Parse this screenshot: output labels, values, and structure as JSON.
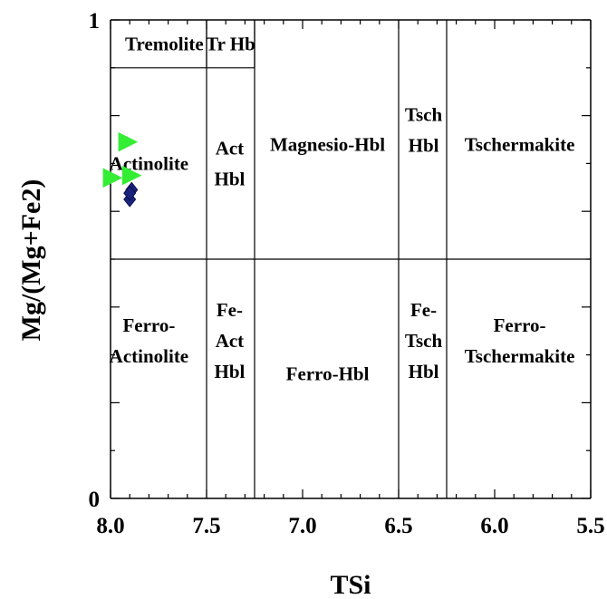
{
  "chart_data": {
    "type": "scatter",
    "title": "",
    "xlabel": "TSi",
    "ylabel": "Mg/(Mg+Fe2)",
    "xlim": [
      8.0,
      5.5
    ],
    "ylim": [
      0,
      1
    ],
    "x_reversed": true,
    "grid": false,
    "x_ticks": [
      8.0,
      7.5,
      7.0,
      6.5,
      6.0,
      5.5
    ],
    "x_tick_labels": [
      "8.0",
      "7.5",
      "7.0",
      "6.5",
      "6.0",
      "5.5"
    ],
    "y_ticks": [
      0,
      1
    ],
    "y_tick_labels": [
      "0",
      "1"
    ],
    "boundaries": {
      "vertical": [
        7.5,
        7.25,
        6.5,
        6.25
      ],
      "horizontal": [
        0.5
      ],
      "top_box": {
        "x_from": 8.0,
        "x_to": 7.25,
        "y_from": 0.9,
        "y_to": 1.0,
        "divider_x": 7.5
      }
    },
    "regions": [
      {
        "lines": [
          "Tremolite"
        ],
        "x": 7.72,
        "y": 0.95
      },
      {
        "lines": [
          "Tr Hb"
        ],
        "x": 7.375,
        "y": 0.95
      },
      {
        "lines": [
          "Actinolite"
        ],
        "x": 7.8,
        "y": 0.7
      },
      {
        "lines": [
          "Act",
          "Hbl"
        ],
        "x": 7.38,
        "y": 0.7
      },
      {
        "lines": [
          "Magnesio-Hbl"
        ],
        "x": 6.87,
        "y": 0.74
      },
      {
        "lines": [
          "Tsch",
          "Hbl"
        ],
        "x": 6.37,
        "y": 0.77
      },
      {
        "lines": [
          "Tschermakite"
        ],
        "x": 5.87,
        "y": 0.74
      },
      {
        "lines": [
          "Ferro-",
          "Actinolite"
        ],
        "x": 7.8,
        "y": 0.33
      },
      {
        "lines": [
          "Fe-",
          "Act",
          "Hbl"
        ],
        "x": 7.38,
        "y": 0.33
      },
      {
        "lines": [
          "Ferro-Hbl"
        ],
        "x": 6.87,
        "y": 0.26
      },
      {
        "lines": [
          "Fe-",
          "Tsch",
          "Hbl"
        ],
        "x": 6.37,
        "y": 0.33
      },
      {
        "lines": [
          "Ferro-",
          "Tschermakite"
        ],
        "x": 5.87,
        "y": 0.33
      }
    ],
    "series": [
      {
        "marker": "triangle-right",
        "color": "#33ee33",
        "points": [
          {
            "x": 7.91,
            "y": 0.745
          },
          {
            "x": 7.99,
            "y": 0.67
          },
          {
            "x": 7.89,
            "y": 0.675
          }
        ]
      },
      {
        "marker": "diamond",
        "color": "#1a237e",
        "points": [
          {
            "x": 7.9,
            "y": 0.625
          },
          {
            "x": 7.89,
            "y": 0.645
          },
          {
            "x": 7.9,
            "y": 0.638
          }
        ]
      }
    ]
  }
}
